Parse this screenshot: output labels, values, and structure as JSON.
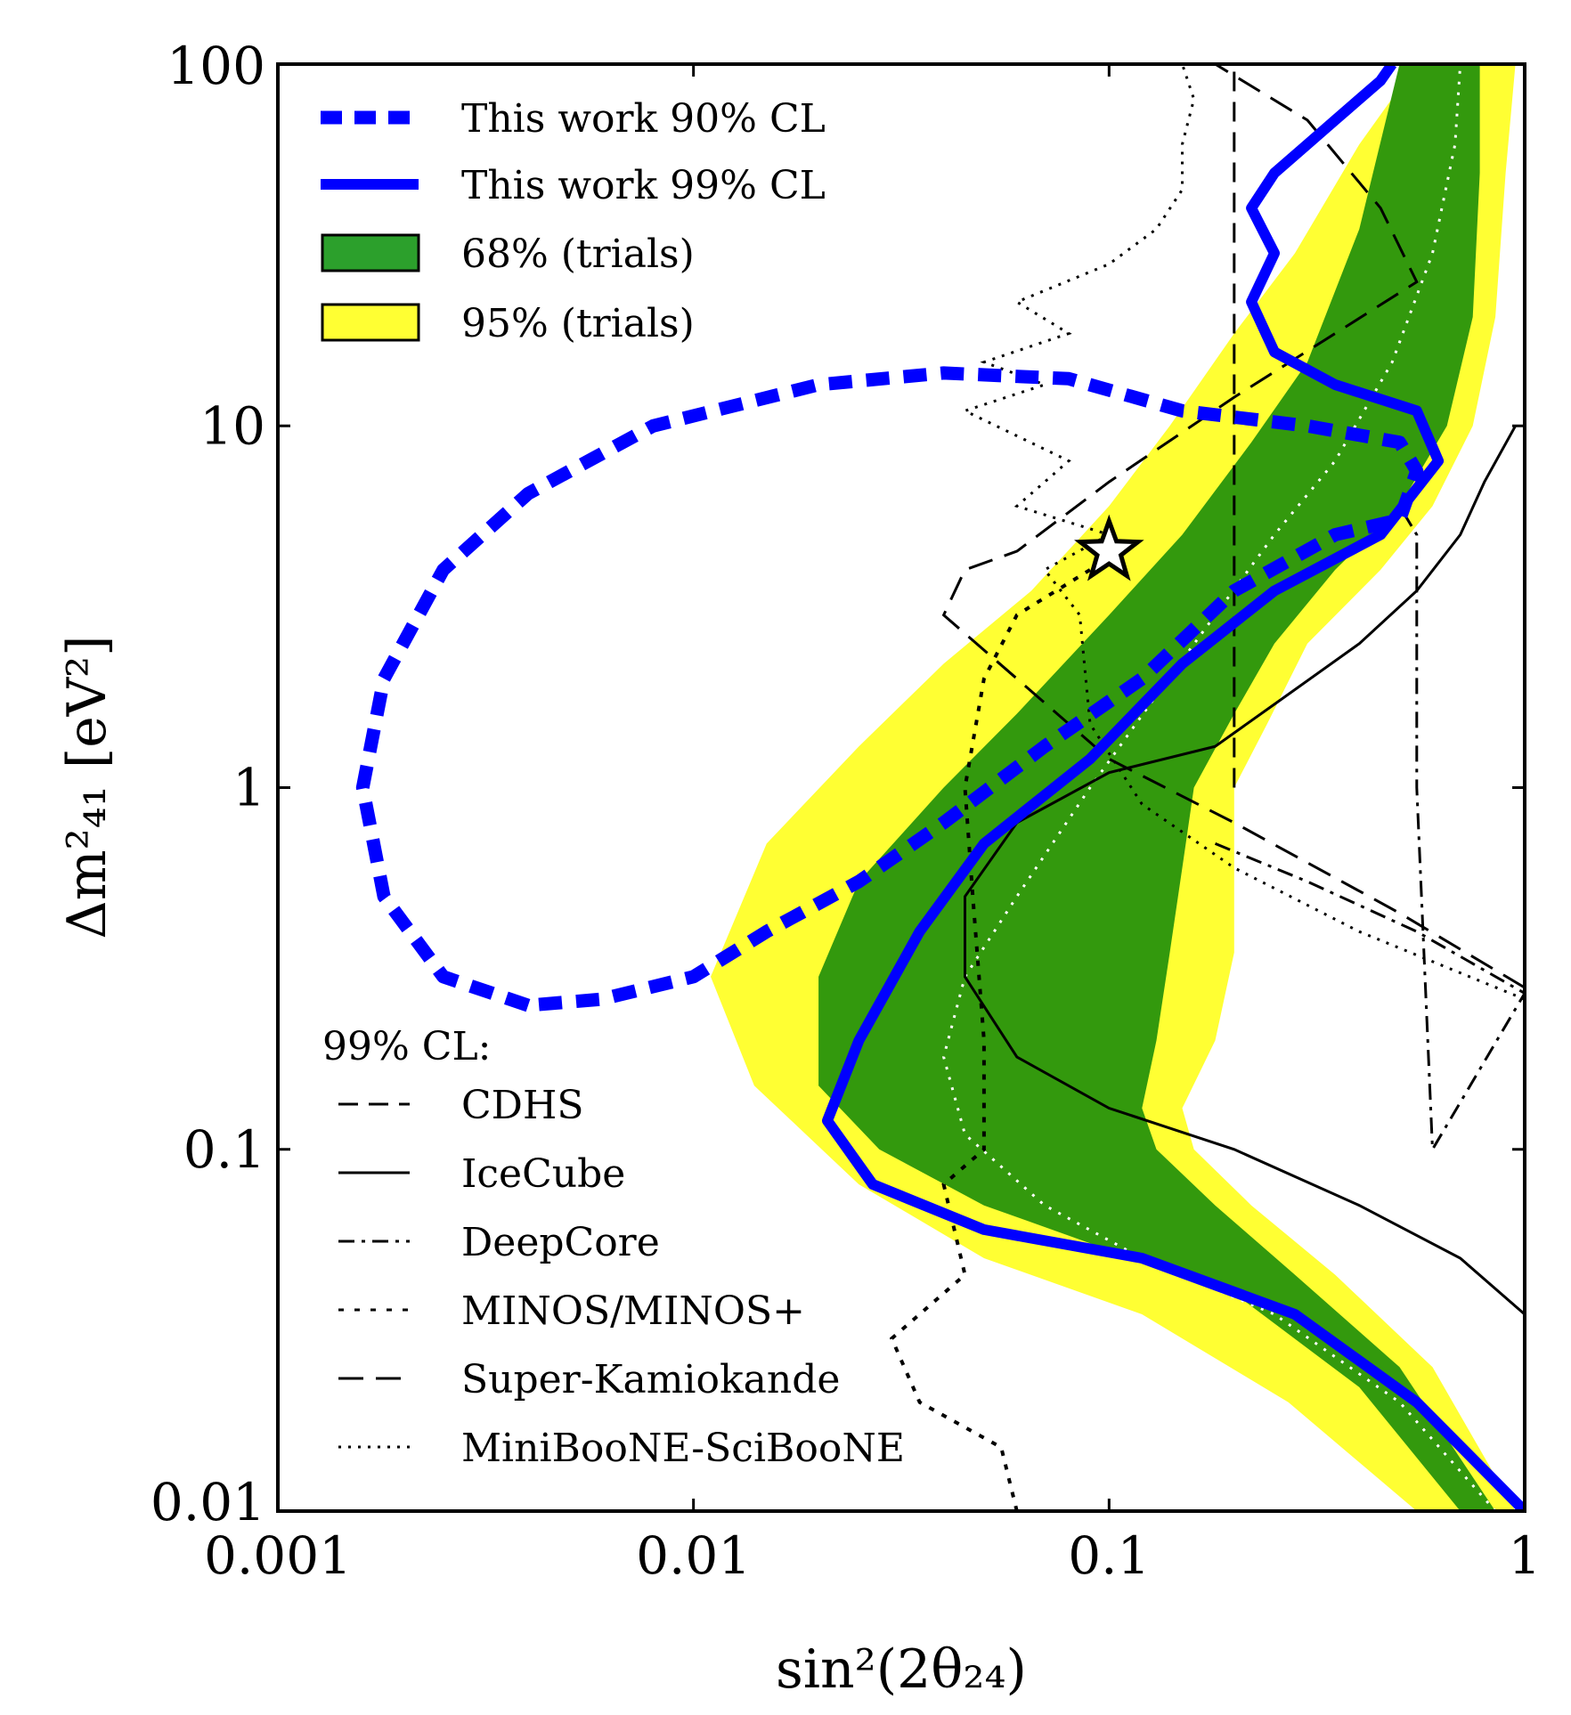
{
  "chart_data": {
    "type": "line",
    "xscale": "log",
    "yscale": "log",
    "xlim": [
      0.001,
      1
    ],
    "ylim": [
      0.01,
      100
    ],
    "x_ticks": [
      0.001,
      0.01,
      0.1,
      1
    ],
    "y_ticks": [
      0.01,
      0.1,
      1,
      10,
      100
    ],
    "x_tick_labels": [
      "0.001",
      "0.01",
      "0.1",
      "1"
    ],
    "y_tick_labels": [
      "0.01",
      "0.1",
      "1",
      "10",
      "100"
    ],
    "xlabel": "sin²(2θ₂₄)",
    "ylabel": "Δm²₄₁ [eV²]",
    "grid": false,
    "legend_position": "top-left",
    "legend": [
      {
        "label": "This work 90% CL",
        "style": "dashed-thick",
        "color": "#0000ff"
      },
      {
        "label": "This work 99% CL",
        "style": "solid-thick",
        "color": "#0000ff"
      },
      {
        "label": "68% (trials)",
        "style": "patch",
        "color": "#2ca02c"
      },
      {
        "label": "95% (trials)",
        "style": "patch",
        "color": "#ffff33"
      }
    ],
    "other_legend": {
      "title": "99% CL:",
      "position": "bottom-left",
      "entries": [
        {
          "label": "CDHS",
          "style": "dashed-long"
        },
        {
          "label": "IceCube",
          "style": "solid"
        },
        {
          "label": "DeepCore",
          "style": "dash-dot"
        },
        {
          "label": "MINOS/MINOS+",
          "style": "dotted-sparse"
        },
        {
          "label": "Super-Kamiokande",
          "style": "dashed"
        },
        {
          "label": "MiniBooNE-SciBooNE",
          "style": "dotted"
        }
      ]
    },
    "best_fit_star": {
      "x": 0.1,
      "y": 4.5
    },
    "band_95": {
      "left": [
        [
          0.55,
          0.01
        ],
        [
          0.27,
          0.02
        ],
        [
          0.12,
          0.035
        ],
        [
          0.05,
          0.05
        ],
        [
          0.025,
          0.08
        ],
        [
          0.014,
          0.15
        ],
        [
          0.011,
          0.3
        ],
        [
          0.015,
          0.7
        ],
        [
          0.025,
          1.3
        ],
        [
          0.04,
          2.2
        ],
        [
          0.065,
          3.5
        ],
        [
          0.1,
          6
        ],
        [
          0.14,
          10
        ],
        [
          0.2,
          18
        ],
        [
          0.28,
          30
        ],
        [
          0.4,
          60
        ],
        [
          0.55,
          100
        ]
      ],
      "right": [
        [
          0.95,
          0.01
        ],
        [
          0.6,
          0.025
        ],
        [
          0.35,
          0.045
        ],
        [
          0.22,
          0.07
        ],
        [
          0.16,
          0.1
        ],
        [
          0.15,
          0.13
        ],
        [
          0.18,
          0.2
        ],
        [
          0.2,
          0.35
        ],
        [
          0.2,
          0.6
        ],
        [
          0.2,
          1.0
        ],
        [
          0.24,
          1.5
        ],
        [
          0.3,
          2.5
        ],
        [
          0.45,
          4
        ],
        [
          0.6,
          6
        ],
        [
          0.75,
          10
        ],
        [
          0.85,
          20
        ],
        [
          0.9,
          50
        ],
        [
          0.95,
          100
        ]
      ]
    },
    "band_68": {
      "left": [
        [
          0.7,
          0.01
        ],
        [
          0.4,
          0.022
        ],
        [
          0.2,
          0.04
        ],
        [
          0.09,
          0.055
        ],
        [
          0.05,
          0.07
        ],
        [
          0.028,
          0.1
        ],
        [
          0.02,
          0.15
        ],
        [
          0.02,
          0.3
        ],
        [
          0.025,
          0.55
        ],
        [
          0.04,
          1.0
        ],
        [
          0.06,
          1.6
        ],
        [
          0.1,
          3
        ],
        [
          0.15,
          5
        ],
        [
          0.22,
          9
        ],
        [
          0.3,
          15
        ],
        [
          0.4,
          35
        ],
        [
          0.5,
          100
        ]
      ],
      "right": [
        [
          0.85,
          0.01
        ],
        [
          0.5,
          0.025
        ],
        [
          0.28,
          0.045
        ],
        [
          0.18,
          0.07
        ],
        [
          0.13,
          0.1
        ],
        [
          0.12,
          0.13
        ],
        [
          0.13,
          0.2
        ],
        [
          0.14,
          0.35
        ],
        [
          0.15,
          0.6
        ],
        [
          0.16,
          1.0
        ],
        [
          0.2,
          1.6
        ],
        [
          0.25,
          2.5
        ],
        [
          0.35,
          4
        ],
        [
          0.5,
          6
        ],
        [
          0.65,
          10
        ],
        [
          0.75,
          20
        ],
        [
          0.78,
          50
        ],
        [
          0.78,
          100
        ]
      ]
    },
    "median_dotted": [
      [
        0.85,
        0.01
      ],
      [
        0.5,
        0.02
      ],
      [
        0.25,
        0.035
      ],
      [
        0.12,
        0.05
      ],
      [
        0.07,
        0.07
      ],
      [
        0.045,
        0.11
      ],
      [
        0.04,
        0.18
      ],
      [
        0.045,
        0.3
      ],
      [
        0.06,
        0.5
      ],
      [
        0.09,
        1.0
      ],
      [
        0.13,
        1.8
      ],
      [
        0.18,
        3.0
      ],
      [
        0.25,
        5
      ],
      [
        0.35,
        8
      ],
      [
        0.48,
        15
      ],
      [
        0.6,
        30
      ],
      [
        0.68,
        60
      ],
      [
        0.7,
        100
      ]
    ],
    "series": [
      {
        "name": "This work 90% CL",
        "points": [
          [
            0.004,
            0.25
          ],
          [
            0.0025,
            0.3
          ],
          [
            0.0018,
            0.5
          ],
          [
            0.0016,
            1.0
          ],
          [
            0.0018,
            2.0
          ],
          [
            0.0025,
            4.0
          ],
          [
            0.004,
            6.5
          ],
          [
            0.008,
            10
          ],
          [
            0.02,
            13
          ],
          [
            0.04,
            14
          ],
          [
            0.08,
            13.5
          ],
          [
            0.15,
            11
          ],
          [
            0.3,
            10
          ],
          [
            0.5,
            9
          ],
          [
            0.55,
            7.5
          ],
          [
            0.5,
            5.5
          ],
          [
            0.35,
            5
          ],
          [
            0.2,
            3.5
          ],
          [
            0.12,
            2
          ],
          [
            0.07,
            1.3
          ],
          [
            0.04,
            0.8
          ],
          [
            0.025,
            0.55
          ],
          [
            0.015,
            0.4
          ],
          [
            0.01,
            0.3
          ],
          [
            0.006,
            0.26
          ],
          [
            0.004,
            0.25
          ]
        ]
      },
      {
        "name": "This work 99% CL",
        "points": [
          [
            1.0,
            0.01
          ],
          [
            0.55,
            0.02
          ],
          [
            0.28,
            0.035
          ],
          [
            0.12,
            0.05
          ],
          [
            0.05,
            0.06
          ],
          [
            0.027,
            0.08
          ],
          [
            0.021,
            0.12
          ],
          [
            0.025,
            0.2
          ],
          [
            0.035,
            0.4
          ],
          [
            0.05,
            0.7
          ],
          [
            0.09,
            1.2
          ],
          [
            0.15,
            2.2
          ],
          [
            0.25,
            3.5
          ],
          [
            0.45,
            5
          ],
          [
            0.62,
            8
          ],
          [
            0.55,
            11
          ],
          [
            0.35,
            13
          ],
          [
            0.25,
            16
          ],
          [
            0.22,
            22
          ],
          [
            0.25,
            30
          ],
          [
            0.22,
            40
          ],
          [
            0.25,
            50
          ],
          [
            0.3,
            60
          ],
          [
            0.35,
            70
          ],
          [
            0.45,
            90
          ],
          [
            0.48,
            100
          ]
        ]
      },
      {
        "name": "CDHS",
        "points": [
          [
            0.2,
            1.0
          ],
          [
            0.2,
            100
          ]
        ]
      },
      {
        "name": "IceCube",
        "points": [
          [
            1.0,
            0.035
          ],
          [
            0.7,
            0.05
          ],
          [
            0.4,
            0.07
          ],
          [
            0.2,
            0.1
          ],
          [
            0.1,
            0.13
          ],
          [
            0.06,
            0.18
          ],
          [
            0.045,
            0.3
          ],
          [
            0.045,
            0.5
          ],
          [
            0.06,
            0.8
          ],
          [
            0.1,
            1.1
          ],
          [
            0.18,
            1.3
          ],
          [
            0.25,
            1.7
          ],
          [
            0.4,
            2.5
          ],
          [
            0.55,
            3.5
          ],
          [
            0.7,
            5
          ],
          [
            0.8,
            7
          ],
          [
            0.95,
            10
          ]
        ]
      },
      {
        "name": "DeepCore",
        "points": [
          [
            0.18,
            0.7
          ],
          [
            0.3,
            0.55
          ],
          [
            0.55,
            0.4
          ],
          [
            1.0,
            0.27
          ],
          [
            0.6,
            0.1
          ],
          [
            0.55,
            1.0
          ],
          [
            0.55,
            2.5
          ],
          [
            0.55,
            5
          ],
          [
            0.5,
            6
          ]
        ]
      },
      {
        "name": "MINOS/MINOS+",
        "points": [
          [
            0.06,
            0.01
          ],
          [
            0.055,
            0.015
          ],
          [
            0.035,
            0.02
          ],
          [
            0.03,
            0.03
          ],
          [
            0.045,
            0.045
          ],
          [
            0.04,
            0.08
          ],
          [
            0.05,
            0.1
          ],
          [
            0.05,
            0.2
          ],
          [
            0.047,
            0.5
          ],
          [
            0.045,
            1.0
          ],
          [
            0.05,
            2
          ],
          [
            0.06,
            3
          ],
          [
            0.09,
            4
          ]
        ]
      },
      {
        "name": "Super-Kamiokande",
        "points": [
          [
            1.0,
            0.28
          ],
          [
            0.5,
            0.45
          ],
          [
            0.2,
            0.8
          ],
          [
            0.1,
            1.2
          ],
          [
            0.06,
            2.0
          ],
          [
            0.04,
            3.0
          ],
          [
            0.045,
            4.0
          ],
          [
            0.06,
            4.5
          ],
          [
            0.1,
            7
          ],
          [
            0.2,
            12
          ],
          [
            0.35,
            18
          ],
          [
            0.55,
            25
          ],
          [
            0.45,
            40
          ],
          [
            0.3,
            70
          ],
          [
            0.18,
            100
          ]
        ]
      },
      {
        "name": "MiniBooNE-SciBooNE",
        "points": [
          [
            1.0,
            0.26
          ],
          [
            0.4,
            0.4
          ],
          [
            0.2,
            0.6
          ],
          [
            0.12,
            0.9
          ],
          [
            0.09,
            1.5
          ],
          [
            0.085,
            3
          ],
          [
            0.07,
            4
          ],
          [
            0.1,
            5
          ],
          [
            0.06,
            6
          ],
          [
            0.08,
            8
          ],
          [
            0.045,
            11
          ],
          [
            0.07,
            13
          ],
          [
            0.05,
            15
          ],
          [
            0.08,
            18
          ],
          [
            0.06,
            22
          ],
          [
            0.1,
            28
          ],
          [
            0.13,
            35
          ],
          [
            0.15,
            45
          ],
          [
            0.15,
            60
          ],
          [
            0.16,
            80
          ],
          [
            0.15,
            100
          ]
        ]
      }
    ]
  }
}
